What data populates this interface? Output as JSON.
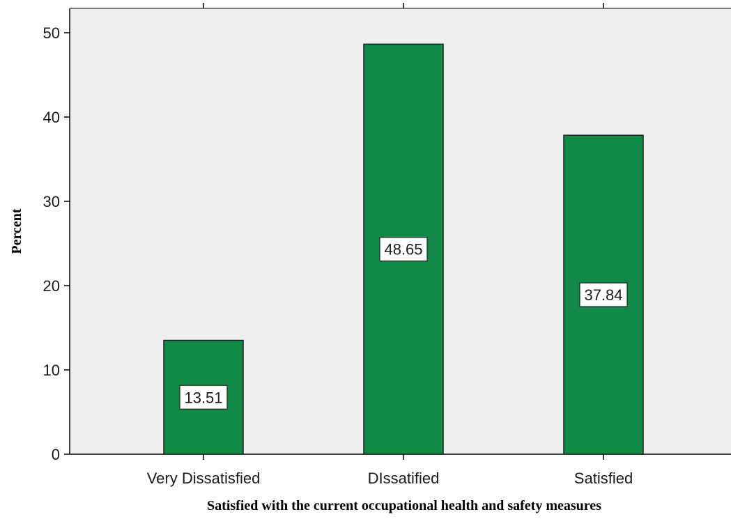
{
  "chart_data": {
    "type": "bar",
    "categories": [
      "Very Dissatisfied",
      "DIssatified",
      "Satisfied"
    ],
    "values": [
      13.51,
      48.65,
      37.84
    ],
    "value_labels": [
      "13.51",
      "48.65",
      "37.84"
    ],
    "title": "",
    "xlabel": "Satisfied with the current occupational health and safety measures",
    "ylabel": "Percent",
    "ylim": [
      0,
      50
    ],
    "yticks": [
      0,
      10,
      20,
      30,
      40,
      50
    ],
    "ytick_labels": [
      "0",
      "10",
      "20",
      "30",
      "40",
      "50"
    ],
    "grid": false,
    "legend": "none",
    "colors": {
      "bar": "#118a47",
      "plot_background": "#efefef",
      "label_box": "#ffffff"
    }
  }
}
